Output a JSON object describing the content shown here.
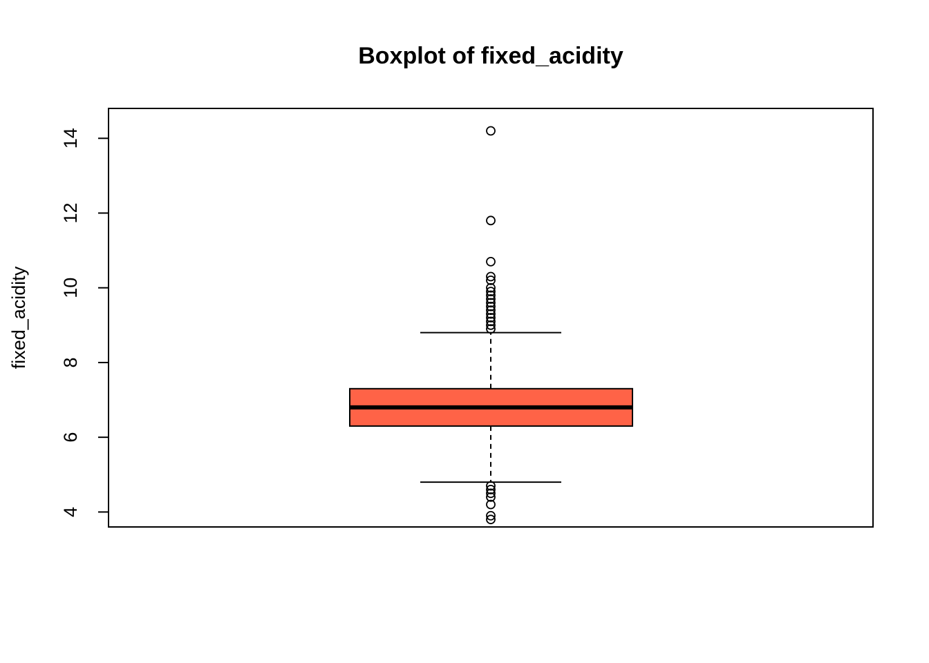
{
  "chart_data": {
    "type": "boxplot",
    "title": "Boxplot of fixed_acidity",
    "xlabel": "",
    "ylabel": "fixed_acidity",
    "ylim": [
      3.6,
      14.8
    ],
    "yticks": [
      4,
      6,
      8,
      10,
      12,
      14
    ],
    "grid": false,
    "box_color": "#FF6347",
    "box": {
      "whisker_low": 4.8,
      "q1": 6.3,
      "median": 6.8,
      "q3": 7.3,
      "whisker_high": 8.8
    },
    "outliers": [
      14.2,
      11.8,
      10.7,
      10.3,
      10.2,
      10.0,
      9.9,
      9.8,
      9.7,
      9.6,
      9.5,
      9.4,
      9.3,
      9.2,
      9.1,
      9.0,
      8.9,
      4.7,
      4.6,
      4.5,
      4.4,
      4.2,
      3.9,
      3.8
    ]
  }
}
